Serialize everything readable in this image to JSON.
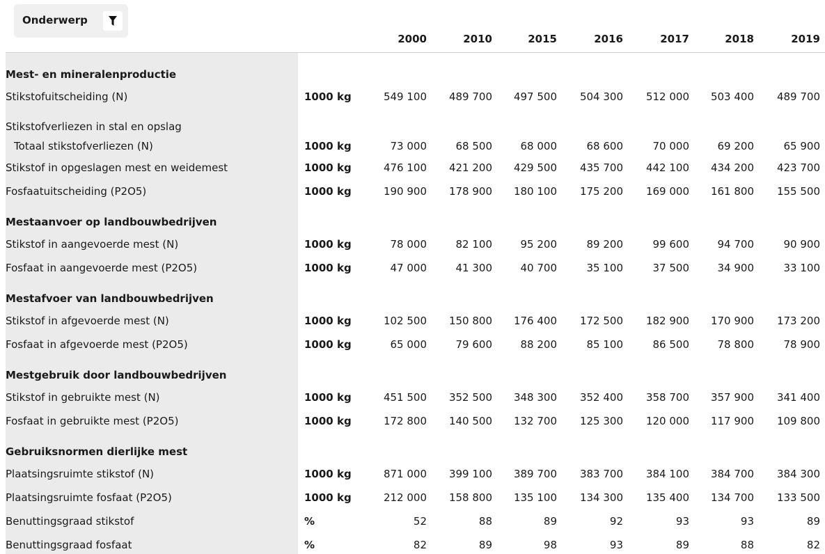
{
  "filter": {
    "label": "Onderwerp"
  },
  "table": {
    "columns": [
      "2000",
      "2010",
      "2015",
      "2016",
      "2017",
      "2018",
      "2019"
    ],
    "groups": [
      {
        "title": "Mest- en mineralenproductie",
        "rows": [
          {
            "label": "Stikstofuitscheiding (N)",
            "unit": "1000 kg",
            "values": [
              "549 100",
              "489 700",
              "497 500",
              "504 300",
              "512 000",
              "503 400",
              "489 700"
            ]
          },
          {
            "label": "Stikstofverliezen in stal en opslag",
            "children": [
              {
                "label": "Totaal stikstofverliezen (N)",
                "unit": "1000 kg",
                "values": [
                  "73 000",
                  "68 500",
                  "68 000",
                  "68 600",
                  "70 000",
                  "69 200",
                  "65 900"
                ]
              }
            ]
          },
          {
            "label": "Stikstof in opgeslagen mest en weidemest",
            "unit": "1000 kg",
            "values": [
              "476 100",
              "421 200",
              "429 500",
              "435 700",
              "442 100",
              "434 200",
              "423 700"
            ]
          },
          {
            "label": "Fosfaatuitscheiding (P2O5)",
            "unit": "1000 kg",
            "values": [
              "190 900",
              "178 900",
              "180 100",
              "175 200",
              "169 000",
              "161 800",
              "155 500"
            ]
          }
        ]
      },
      {
        "title": "Mestaanvoer op landbouwbedrijven",
        "rows": [
          {
            "label": "Stikstof in aangevoerde mest (N)",
            "unit": "1000 kg",
            "values": [
              "78 000",
              "82 100",
              "95 200",
              "89 200",
              "99 600",
              "94 700",
              "90 900"
            ]
          },
          {
            "label": "Fosfaat in aangevoerde mest (P2O5)",
            "unit": "1000 kg",
            "values": [
              "47 000",
              "41 300",
              "40 700",
              "35 100",
              "37 500",
              "34 900",
              "33 100"
            ]
          }
        ]
      },
      {
        "title": "Mestafvoer van landbouwbedrijven",
        "rows": [
          {
            "label": "Stikstof in afgevoerde mest (N)",
            "unit": "1000 kg",
            "values": [
              "102 500",
              "150 800",
              "176 400",
              "172 500",
              "182 900",
              "170 900",
              "173 200"
            ]
          },
          {
            "label": "Fosfaat in afgevoerde mest (P2O5)",
            "unit": "1000 kg",
            "values": [
              "65 000",
              "79 600",
              "88 200",
              "85 100",
              "86 500",
              "78 800",
              "78 900"
            ]
          }
        ]
      },
      {
        "title": "Mestgebruik door landbouwbedrijven",
        "rows": [
          {
            "label": "Stikstof in gebruikte mest (N)",
            "unit": "1000 kg",
            "values": [
              "451 500",
              "352 500",
              "348 300",
              "352 400",
              "358 700",
              "357 900",
              "341 400"
            ]
          },
          {
            "label": "Fosfaat in gebruikte mest (P2O5)",
            "unit": "1000 kg",
            "values": [
              "172 800",
              "140 500",
              "132 700",
              "125 300",
              "120 000",
              "117 900",
              "109 800"
            ]
          }
        ]
      },
      {
        "title": "Gebruiksnormen dierlijke mest",
        "rows": [
          {
            "label": "Plaatsingsruimte stikstof (N)",
            "unit": "1000 kg",
            "values": [
              "871 000",
              "399 100",
              "389 700",
              "383 700",
              "384 100",
              "384 700",
              "384 300"
            ]
          },
          {
            "label": "Plaatsingsruimte fosfaat (P2O5)",
            "unit": "1000 kg",
            "values": [
              "212 000",
              "158 800",
              "135 100",
              "134 300",
              "135 400",
              "134 700",
              "133 500"
            ]
          },
          {
            "label": "Benuttingsgraad stikstof",
            "unit": "%",
            "values": [
              "52",
              "88",
              "89",
              "92",
              "93",
              "93",
              "89"
            ]
          },
          {
            "label": "Benuttingsgraad fosfaat",
            "unit": "%",
            "values": [
              "82",
              "89",
              "98",
              "93",
              "89",
              "88",
              "82"
            ]
          }
        ]
      }
    ]
  }
}
